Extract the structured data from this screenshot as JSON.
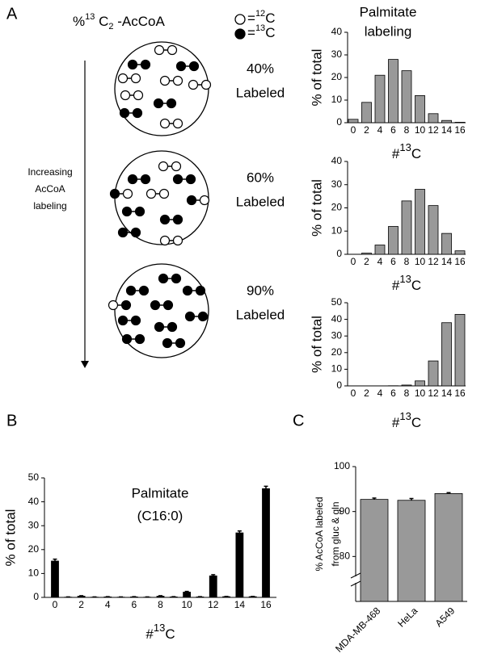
{
  "figure": {
    "panels": [
      "A",
      "B",
      "C"
    ],
    "header": [
      "%",
      "13",
      " C",
      "2",
      " -AcCoA"
    ],
    "legend": [
      [
        "=",
        "12",
        "C"
      ],
      [
        "=",
        "13",
        "C"
      ]
    ],
    "arrow_label": [
      "Increasing",
      "AcCoA",
      "labeling"
    ],
    "circles": [
      [
        "40%",
        "Labeled"
      ],
      [
        "60%",
        "Labeled"
      ],
      [
        "90%",
        "Labeled"
      ]
    ]
  },
  "chart_data": [
    {
      "type": "bar",
      "title": [
        "Palmitate",
        "labeling"
      ],
      "ylabel": "% of total",
      "xlabel": [
        "#",
        "13",
        "C"
      ],
      "categories": [
        0,
        2,
        4,
        6,
        8,
        10,
        12,
        14,
        16
      ],
      "values": [
        1.5,
        9,
        21,
        28,
        23,
        12,
        4,
        1,
        0.2
      ],
      "color": "#999999",
      "ylim": [
        0,
        40
      ],
      "yticks": [
        0,
        10,
        20,
        30,
        40
      ]
    },
    {
      "type": "bar",
      "ylabel": "% of total",
      "xlabel": [
        "#",
        "13",
        "C"
      ],
      "categories": [
        0,
        2,
        4,
        6,
        8,
        10,
        12,
        14,
        16
      ],
      "values": [
        0,
        0.5,
        4,
        12,
        23,
        28,
        21,
        9,
        1.5
      ],
      "color": "#999999",
      "ylim": [
        0,
        40
      ],
      "yticks": [
        0,
        10,
        20,
        30,
        40
      ]
    },
    {
      "type": "bar",
      "ylabel": "% of total",
      "xlabel": [
        "#",
        "13",
        "C"
      ],
      "categories": [
        0,
        2,
        4,
        6,
        8,
        10,
        12,
        14,
        16
      ],
      "values": [
        0,
        0,
        0,
        0.1,
        0.5,
        3,
        15,
        38,
        43
      ],
      "color": "#999999",
      "ylim": [
        0,
        50
      ],
      "yticks": [
        0,
        10,
        20,
        30,
        40,
        50
      ]
    },
    {
      "type": "bar",
      "title": [
        "Palmitate",
        "(C16:0)"
      ],
      "ylabel": "% of total",
      "xlabel": [
        "#",
        "13",
        "C"
      ],
      "categories": [
        0,
        null,
        2,
        null,
        4,
        null,
        6,
        null,
        8,
        null,
        10,
        null,
        12,
        null,
        14,
        null,
        16
      ],
      "values": [
        15.2,
        0.1,
        0.5,
        0.1,
        0.2,
        0.1,
        0.2,
        0.1,
        0.5,
        0.2,
        2.2,
        0.2,
        9,
        0.3,
        27,
        0.3,
        45.5
      ],
      "errors": [
        0.8,
        0.1,
        0.2,
        0.1,
        0.1,
        0.1,
        0.1,
        0.1,
        0.2,
        0.1,
        0.3,
        0.1,
        0.5,
        0.1,
        0.8,
        0.1,
        1
      ],
      "color": "#000000",
      "ylim": [
        0,
        50
      ],
      "yticks": [
        0,
        10,
        20,
        30,
        40,
        50
      ]
    },
    {
      "type": "bar",
      "ylabel": [
        "% AcCoA labeled",
        "from gluc & gln"
      ],
      "categories": [
        "MDA-MB-468",
        "HeLa",
        "A549"
      ],
      "values": [
        92.7,
        92.5,
        94
      ],
      "errors": [
        0.3,
        0.4,
        0.2
      ],
      "color": "#999999",
      "ylim": [
        70,
        100
      ],
      "yticks": [
        80,
        90,
        100
      ]
    }
  ]
}
